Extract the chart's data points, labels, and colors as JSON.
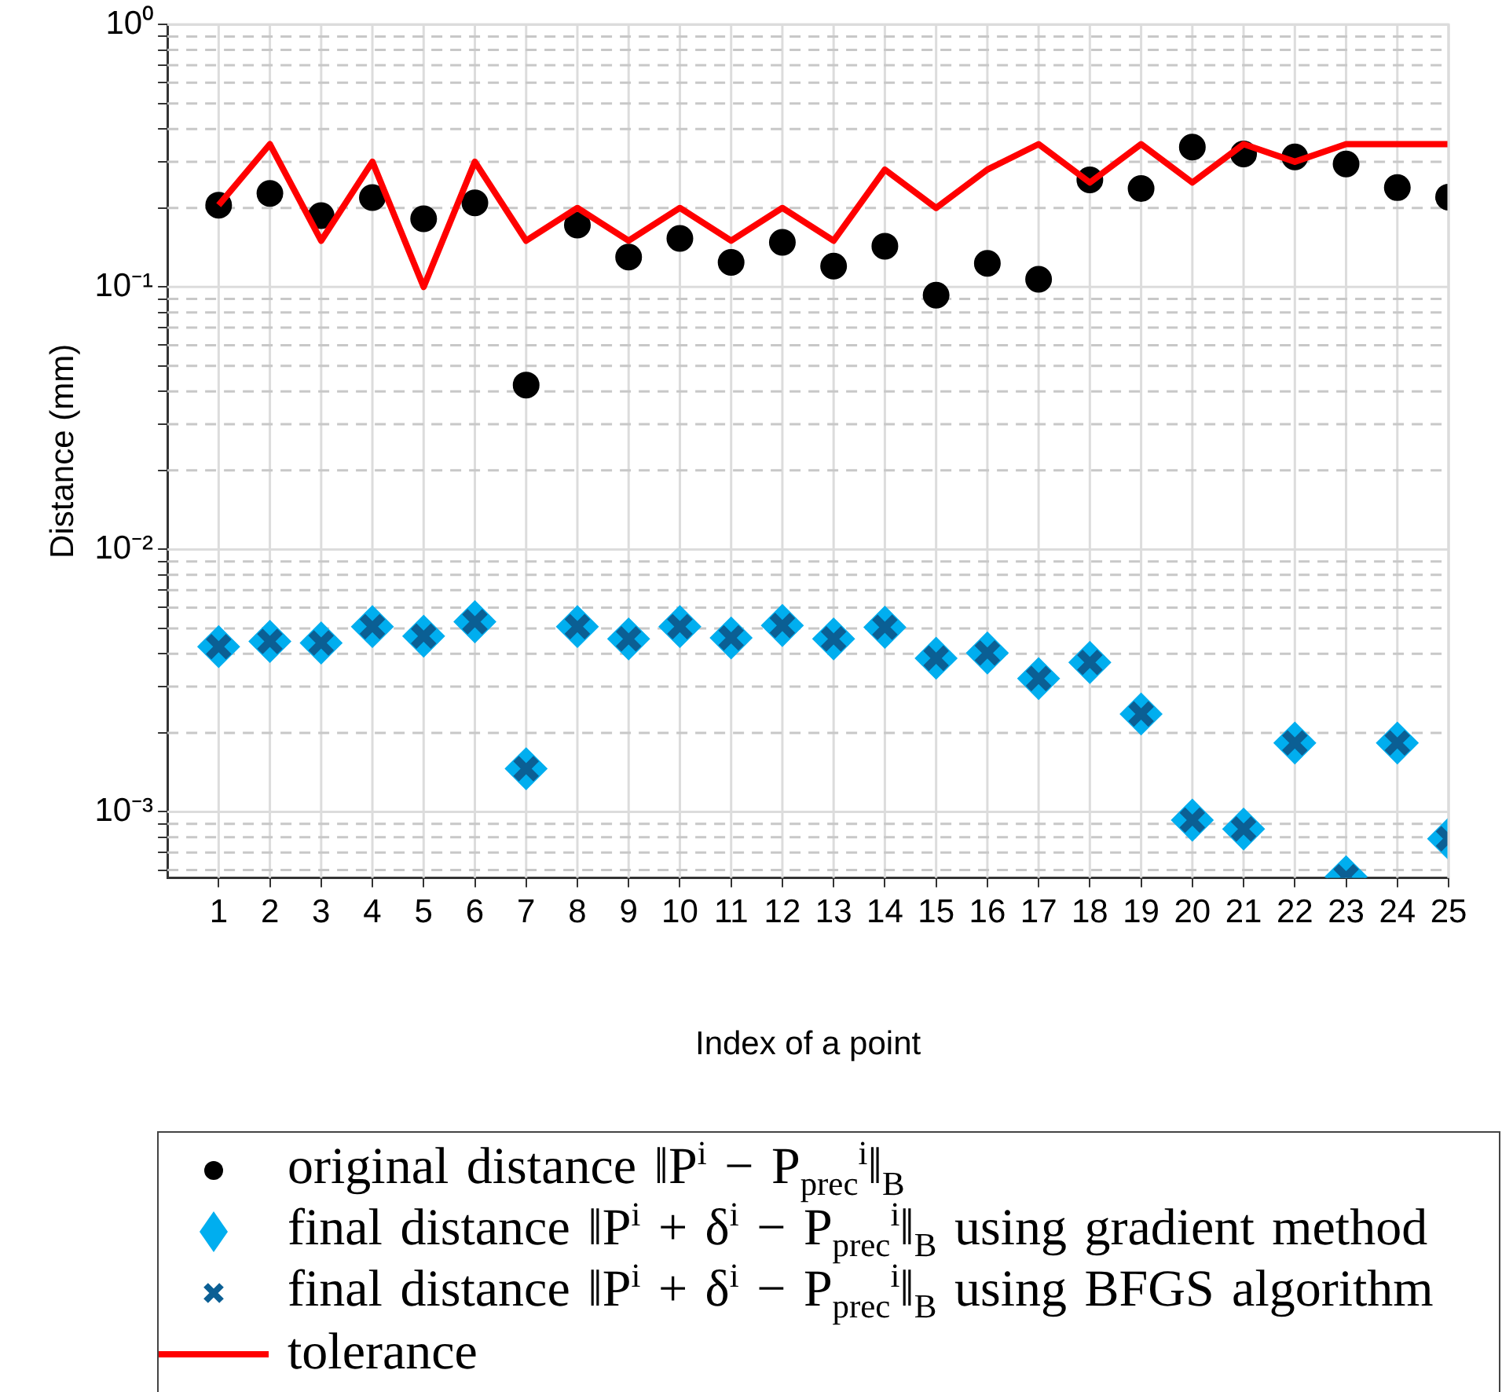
{
  "chart_data": {
    "type": "scatter",
    "xlabel": "Index of a point",
    "ylabel": "Distance (mm)",
    "x": [
      1,
      2,
      3,
      4,
      5,
      6,
      7,
      8,
      9,
      10,
      11,
      12,
      13,
      14,
      15,
      16,
      17,
      18,
      19,
      20,
      21,
      22,
      23,
      24,
      25
    ],
    "xlim": [
      0,
      25
    ],
    "xticks": [
      1,
      2,
      3,
      4,
      5,
      6,
      7,
      8,
      9,
      10,
      11,
      12,
      13,
      14,
      15,
      16,
      17,
      18,
      19,
      20,
      21,
      22,
      23,
      24,
      25
    ],
    "log": "y",
    "ylim": [
      0.00056,
      1
    ],
    "yticks": [
      {
        "value": 0.0006,
        "label": null
      },
      {
        "value": 0.0007,
        "label": null
      },
      {
        "value": 0.0008,
        "label": null
      },
      {
        "value": 0.0009,
        "label": null
      },
      {
        "value": 0.001,
        "label": "10⁻³"
      },
      {
        "value": 0.002,
        "label": null
      },
      {
        "value": 0.003,
        "label": null
      },
      {
        "value": 0.004,
        "label": null
      },
      {
        "value": 0.005,
        "label": null
      },
      {
        "value": 0.006,
        "label": null
      },
      {
        "value": 0.007,
        "label": null
      },
      {
        "value": 0.008,
        "label": null
      },
      {
        "value": 0.009,
        "label": null
      },
      {
        "value": 0.01,
        "label": "10⁻²"
      },
      {
        "value": 0.02,
        "label": null
      },
      {
        "value": 0.03,
        "label": null
      },
      {
        "value": 0.04,
        "label": null
      },
      {
        "value": 0.05,
        "label": null
      },
      {
        "value": 0.06,
        "label": null
      },
      {
        "value": 0.07,
        "label": null
      },
      {
        "value": 0.08,
        "label": null
      },
      {
        "value": 0.09,
        "label": null
      },
      {
        "value": 0.1,
        "label": "10⁻¹"
      },
      {
        "value": 0.2,
        "label": null
      },
      {
        "value": 0.3,
        "label": null
      },
      {
        "value": 0.4,
        "label": null
      },
      {
        "value": 0.5,
        "label": null
      },
      {
        "value": 0.6,
        "label": null
      },
      {
        "value": 0.7,
        "label": null
      },
      {
        "value": 0.8,
        "label": null
      },
      {
        "value": 0.9,
        "label": null
      },
      {
        "value": 1,
        "label": "10⁰"
      }
    ],
    "grid": true,
    "legend": "bottom",
    "series": [
      {
        "name": "original distance ‖P$^{i}$ − P$_{prec}$$^{i}$‖$_{B}$",
        "type": "scatter",
        "marker": "circle",
        "color": "#000000",
        "values": [
          0.205,
          0.227,
          0.187,
          0.219,
          0.182,
          0.209,
          0.0423,
          0.172,
          0.13,
          0.153,
          0.124,
          0.148,
          0.12,
          0.143,
          0.093,
          0.123,
          0.107,
          0.256,
          0.237,
          0.341,
          0.321,
          0.313,
          0.294,
          0.239,
          0.22
        ]
      },
      {
        "name": "final distance ‖P$^{i}$ + δ$^{i}$ − P$_{prec}$$^{i}$‖$_{B}$ using gradient method",
        "type": "scatter",
        "marker": "diamond",
        "color": "#00aeef",
        "values": [
          0.00426,
          0.00446,
          0.0044,
          0.00508,
          0.00467,
          0.0053,
          0.00146,
          0.00508,
          0.00456,
          0.00508,
          0.0046,
          0.00513,
          0.00456,
          0.00505,
          0.00385,
          0.00403,
          0.00322,
          0.00371,
          0.00236,
          0.00093,
          0.00086,
          0.00183,
          0.000566,
          0.00183,
          0.00079
        ]
      },
      {
        "name": "final distance ‖P$^{i}$ + δ$^{i}$ − P$_{prec}$$^{i}$‖$_{B}$ using BFGS algorithm",
        "type": "scatter",
        "marker": "cross",
        "color": "#0b5f94",
        "values": [
          0.00426,
          0.00446,
          0.0044,
          0.00508,
          0.00467,
          0.0053,
          0.00146,
          0.00508,
          0.00456,
          0.00508,
          0.0046,
          0.00513,
          0.00456,
          0.00505,
          0.00385,
          0.00403,
          0.00322,
          0.00371,
          0.00236,
          0.00093,
          0.00086,
          0.00183,
          0.000566,
          0.00183,
          0.00079
        ]
      },
      {
        "name": "tolerance",
        "type": "line",
        "marker": "none",
        "line_style": "solid",
        "color": "#ff0000",
        "values": [
          0.205,
          0.35,
          0.15,
          0.3,
          0.1,
          0.3,
          0.15,
          0.2,
          0.15,
          0.2,
          0.15,
          0.2,
          0.15,
          0.28,
          0.2,
          0.28,
          0.35,
          0.25,
          0.35,
          0.25,
          0.35,
          0.3,
          0.35,
          0.35,
          0.35
        ]
      }
    ]
  }
}
